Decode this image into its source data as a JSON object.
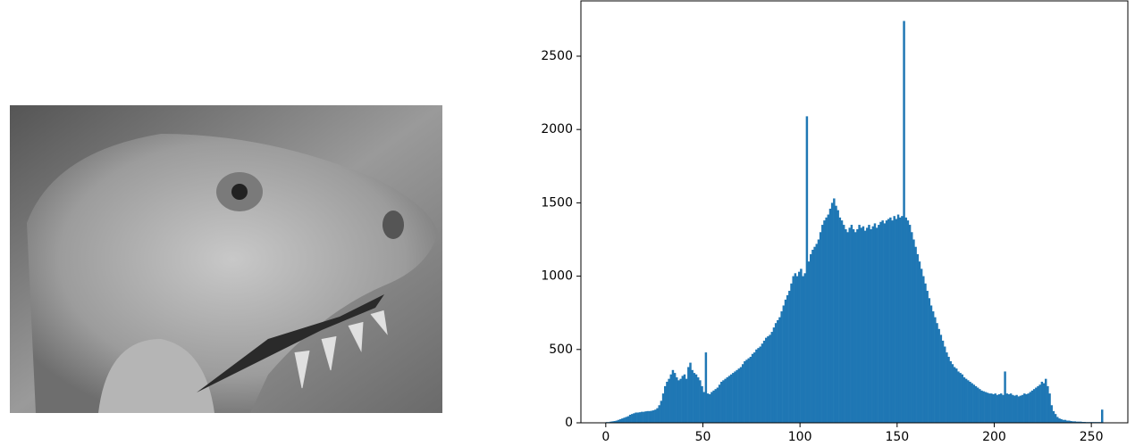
{
  "chart_data": {
    "type": "histogram",
    "color": "#1f77b4",
    "bins": [
      0,
      1,
      2,
      3,
      4,
      5,
      6,
      7,
      8,
      9,
      10,
      11,
      12,
      13,
      14,
      15,
      16,
      17,
      18,
      19,
      20,
      21,
      22,
      23,
      24,
      25,
      26,
      27,
      28,
      29,
      30,
      31,
      32,
      33,
      34,
      35,
      36,
      37,
      38,
      39,
      40,
      41,
      42,
      43,
      44,
      45,
      46,
      47,
      48,
      49,
      50,
      51,
      52,
      53,
      54,
      55,
      56,
      57,
      58,
      59,
      60,
      61,
      62,
      63,
      64,
      65,
      66,
      67,
      68,
      69,
      70,
      71,
      72,
      73,
      74,
      75,
      76,
      77,
      78,
      79,
      80,
      81,
      82,
      83,
      84,
      85,
      86,
      87,
      88,
      89,
      90,
      91,
      92,
      93,
      94,
      95,
      96,
      97,
      98,
      99,
      100,
      101,
      102,
      103,
      104,
      105,
      106,
      107,
      108,
      109,
      110,
      111,
      112,
      113,
      114,
      115,
      116,
      117,
      118,
      119,
      120,
      121,
      122,
      123,
      124,
      125,
      126,
      127,
      128,
      129,
      130,
      131,
      132,
      133,
      134,
      135,
      136,
      137,
      138,
      139,
      140,
      141,
      142,
      143,
      144,
      145,
      146,
      147,
      148,
      149,
      150,
      151,
      152,
      153,
      154,
      155,
      156,
      157,
      158,
      159,
      160,
      161,
      162,
      163,
      164,
      165,
      166,
      167,
      168,
      169,
      170,
      171,
      172,
      173,
      174,
      175,
      176,
      177,
      178,
      179,
      180,
      181,
      182,
      183,
      184,
      185,
      186,
      187,
      188,
      189,
      190,
      191,
      192,
      193,
      194,
      195,
      196,
      197,
      198,
      199,
      200,
      201,
      202,
      203,
      204,
      205,
      206,
      207,
      208,
      209,
      210,
      211,
      212,
      213,
      214,
      215,
      216,
      217,
      218,
      219,
      220,
      221,
      222,
      223,
      224,
      225,
      226,
      227,
      228,
      229,
      230,
      231,
      232,
      233,
      234,
      235,
      236,
      237,
      238,
      239,
      240,
      241,
      242,
      243,
      244,
      245,
      246,
      247,
      248,
      249,
      250,
      251,
      252,
      253,
      254,
      255,
      256
    ],
    "values": [
      5,
      5,
      8,
      10,
      12,
      15,
      20,
      25,
      30,
      35,
      40,
      45,
      55,
      60,
      65,
      70,
      70,
      72,
      75,
      75,
      78,
      80,
      80,
      82,
      85,
      90,
      100,
      120,
      150,
      200,
      250,
      280,
      300,
      330,
      360,
      340,
      310,
      290,
      300,
      320,
      330,
      300,
      380,
      410,
      360,
      340,
      330,
      310,
      290,
      250,
      210,
      480,
      200,
      195,
      210,
      220,
      230,
      240,
      260,
      280,
      290,
      300,
      310,
      320,
      330,
      340,
      350,
      360,
      370,
      380,
      400,
      420,
      430,
      440,
      450,
      470,
      480,
      500,
      510,
      520,
      540,
      560,
      580,
      590,
      600,
      620,
      650,
      680,
      700,
      720,
      760,
      800,
      840,
      870,
      900,
      950,
      1000,
      1020,
      1000,
      1030,
      1050,
      1000,
      1020,
      2090,
      1100,
      1150,
      1180,
      1200,
      1220,
      1250,
      1300,
      1350,
      1380,
      1400,
      1420,
      1460,
      1500,
      1530,
      1480,
      1450,
      1400,
      1380,
      1350,
      1320,
      1300,
      1330,
      1350,
      1320,
      1300,
      1320,
      1350,
      1330,
      1340,
      1310,
      1330,
      1350,
      1320,
      1340,
      1360,
      1330,
      1350,
      1370,
      1380,
      1360,
      1380,
      1390,
      1400,
      1380,
      1410,
      1390,
      1420,
      1400,
      1410,
      2740,
      1400,
      1380,
      1350,
      1300,
      1250,
      1200,
      1150,
      1100,
      1050,
      1000,
      950,
      900,
      850,
      800,
      760,
      720,
      680,
      640,
      600,
      560,
      520,
      480,
      450,
      420,
      400,
      380,
      370,
      350,
      340,
      330,
      310,
      300,
      290,
      280,
      270,
      260,
      250,
      240,
      230,
      220,
      215,
      210,
      205,
      200,
      200,
      195,
      200,
      190,
      195,
      200,
      190,
      350,
      200,
      195,
      200,
      190,
      185,
      190,
      180,
      185,
      190,
      200,
      195,
      200,
      210,
      220,
      230,
      240,
      250,
      260,
      280,
      270,
      300,
      250,
      200,
      120,
      80,
      60,
      40,
      30,
      25,
      20,
      20,
      15,
      15,
      12,
      10,
      10,
      8,
      8,
      8,
      6,
      6,
      5,
      5,
      5,
      5,
      5,
      5,
      5,
      5,
      90
    ],
    "xlim": [
      -12.8,
      268.8
    ],
    "xticks": [
      0,
      50,
      100,
      150,
      200,
      250
    ],
    "ylim": [
      0,
      2877
    ],
    "yticks": [
      0,
      500,
      1000,
      1500,
      2000,
      2500
    ]
  }
}
